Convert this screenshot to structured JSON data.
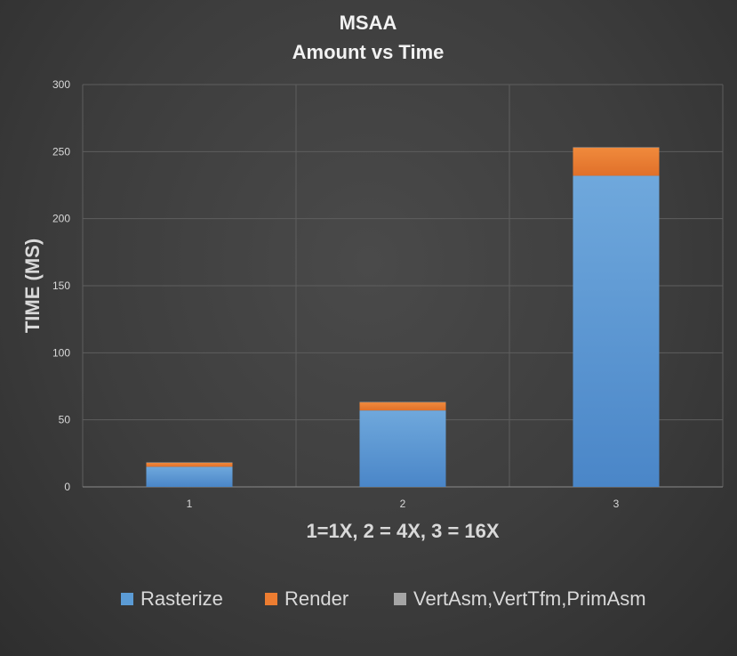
{
  "chart_data": {
    "type": "bar",
    "stacked": true,
    "title": "MSAA",
    "subtitle": "Amount vs Time",
    "xlabel": "1=1X, 2 = 4X, 3 = 16X",
    "ylabel": "TIME (MS)",
    "categories": [
      "1",
      "2",
      "3"
    ],
    "ylim": [
      0,
      300
    ],
    "yticks": [
      0,
      50,
      100,
      150,
      200,
      250,
      300
    ],
    "grid": true,
    "legend_position": "bottom",
    "series": [
      {
        "name": "Rasterize",
        "values": [
          15,
          57,
          232
        ],
        "color": "#5b9bd5"
      },
      {
        "name": "Render",
        "values": [
          3,
          6,
          21
        ],
        "color": "#ed7d31"
      },
      {
        "name": "VertAsm,VertTfm,PrimAsm",
        "values": [
          0.3,
          0.3,
          0.3
        ],
        "color": "#a5a5a5"
      }
    ]
  }
}
